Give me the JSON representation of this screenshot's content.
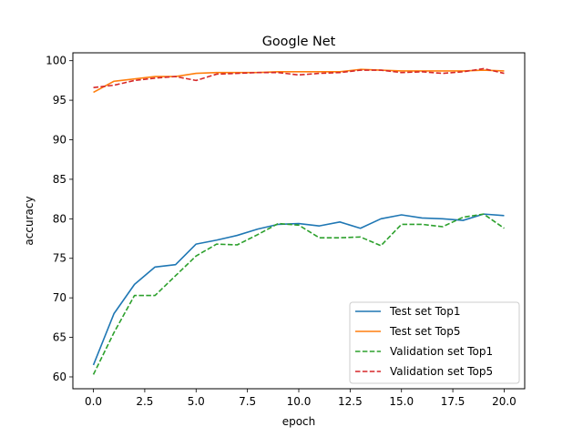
{
  "chart_data": {
    "type": "line",
    "title": "Google Net",
    "xlabel": "epoch",
    "ylabel": "accuracy",
    "xlim": [
      -1.0,
      21.0
    ],
    "ylim": [
      58.5,
      101.0
    ],
    "xticks": [
      0,
      2.5,
      5,
      7.5,
      10,
      12.5,
      15,
      17.5,
      20
    ],
    "xtick_labels": [
      "0.0",
      "2.5",
      "5.0",
      "7.5",
      "10.0",
      "12.5",
      "15.0",
      "17.5",
      "20.0"
    ],
    "yticks": [
      60,
      65,
      70,
      75,
      80,
      85,
      90,
      95,
      100
    ],
    "ytick_labels": [
      "60",
      "65",
      "70",
      "75",
      "80",
      "85",
      "90",
      "95",
      "100"
    ],
    "grid": false,
    "legend_position": "lower-right",
    "x": [
      0,
      1,
      2,
      3,
      4,
      5,
      6,
      7,
      8,
      9,
      10,
      11,
      12,
      13,
      14,
      15,
      16,
      17,
      18,
      19,
      20
    ],
    "series": [
      {
        "name": "Test set Top1",
        "color": "#1f77b4",
        "dash": "solid",
        "values": [
          61.5,
          68.0,
          71.7,
          73.9,
          74.2,
          76.8,
          77.3,
          77.9,
          78.7,
          79.3,
          79.4,
          79.1,
          79.6,
          78.8,
          80.0,
          80.5,
          80.1,
          80.0,
          79.8,
          80.6,
          80.4
        ]
      },
      {
        "name": "Test set Top5",
        "color": "#ff7f0e",
        "dash": "solid",
        "values": [
          96.0,
          97.4,
          97.7,
          98.0,
          98.0,
          98.4,
          98.5,
          98.5,
          98.5,
          98.6,
          98.6,
          98.6,
          98.6,
          98.9,
          98.8,
          98.7,
          98.7,
          98.7,
          98.7,
          98.8,
          98.7
        ]
      },
      {
        "name": "Validation set Top1",
        "color": "#2ca02c",
        "dash": "dashed",
        "values": [
          60.3,
          65.6,
          70.3,
          70.3,
          72.8,
          75.3,
          76.8,
          76.7,
          78.0,
          79.4,
          79.2,
          77.6,
          77.6,
          77.7,
          76.6,
          79.3,
          79.3,
          79.0,
          80.2,
          80.6,
          78.8
        ]
      },
      {
        "name": "Validation set Top5",
        "color": "#d62728",
        "dash": "dashed",
        "values": [
          96.6,
          96.9,
          97.5,
          97.8,
          98.0,
          97.5,
          98.3,
          98.4,
          98.5,
          98.5,
          98.2,
          98.4,
          98.5,
          98.8,
          98.8,
          98.5,
          98.6,
          98.4,
          98.6,
          99.0,
          98.4
        ]
      }
    ]
  }
}
